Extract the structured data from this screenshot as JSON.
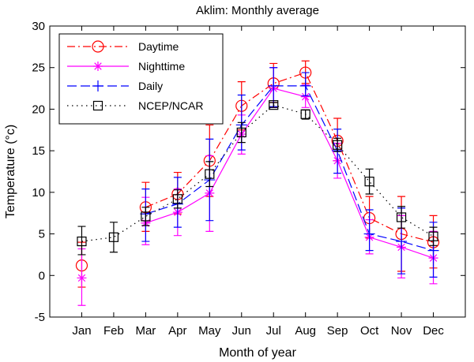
{
  "chart_data": {
    "type": "line",
    "title": "Aklim: Monthly average",
    "xlabel": "Month of year",
    "ylabel": "Temperature (°c)",
    "ylim": [
      -5,
      30
    ],
    "yticks": [
      -5,
      0,
      5,
      10,
      15,
      20,
      25,
      30
    ],
    "categories": [
      "Jan",
      "Feb",
      "Mar",
      "Apr",
      "May",
      "Jun",
      "Jul",
      "Aug",
      "Sep",
      "Oct",
      "Nov",
      "Dec"
    ],
    "legend_position": "top-left",
    "series": [
      {
        "name": "Daytime",
        "color": "#ff0000",
        "line_style": "dash-dot",
        "marker": "circle",
        "values": [
          1.2,
          null,
          8.2,
          9.8,
          13.8,
          20.4,
          23.1,
          24.4,
          16.2,
          6.9,
          5.0,
          4.0
        ],
        "err_low": [
          -1.4,
          null,
          5.3,
          7.4,
          9.5,
          17.5,
          20.8,
          23.1,
          13.8,
          4.5,
          0.5,
          0.9
        ],
        "err_high": [
          4.0,
          null,
          11.2,
          12.4,
          18.1,
          23.3,
          25.5,
          25.8,
          18.9,
          9.5,
          9.5,
          7.2
        ]
      },
      {
        "name": "Nighttime",
        "color": "#ff00ff",
        "line_style": "solid",
        "marker": "star",
        "values": [
          -0.3,
          null,
          6.3,
          7.6,
          9.9,
          17.0,
          22.5,
          21.5,
          13.8,
          4.6,
          3.4,
          2.1
        ],
        "err_low": [
          -3.6,
          null,
          3.7,
          4.8,
          5.3,
          14.6,
          20.2,
          20.2,
          11.7,
          2.6,
          -0.3,
          -1.0
        ],
        "err_high": [
          3.2,
          null,
          9.4,
          10.4,
          14.4,
          19.3,
          25.0,
          22.9,
          15.9,
          6.7,
          7.2,
          5.3
        ]
      },
      {
        "name": "Daily",
        "color": "#0000ff",
        "line_style": "dashed",
        "marker": "plus",
        "values": [
          null,
          null,
          7.4,
          8.6,
          11.5,
          18.1,
          22.8,
          22.8,
          15.0,
          5.0,
          4.1,
          3.0
        ],
        "err_low": [
          null,
          null,
          4.1,
          5.8,
          6.6,
          15.1,
          20.3,
          21.6,
          12.3,
          3.0,
          0.2,
          -0.2
        ],
        "err_high": [
          null,
          null,
          10.4,
          11.8,
          16.4,
          21.7,
          25.0,
          24.4,
          17.6,
          7.9,
          8.1,
          6.4
        ]
      },
      {
        "name": "NCEP/NCAR",
        "color": "#000000",
        "line_style": "dotted",
        "marker": "square",
        "values": [
          4.1,
          4.6,
          7.1,
          9.2,
          12.2,
          17.2,
          20.5,
          19.4,
          15.7,
          11.3,
          7.0,
          4.7
        ],
        "err_low": [
          2.5,
          2.8,
          6.0,
          8.1,
          10.7,
          16.0,
          20.2,
          18.8,
          14.9,
          9.8,
          5.7,
          3.6
        ],
        "err_high": [
          5.9,
          6.4,
          8.2,
          10.3,
          13.7,
          18.4,
          20.8,
          19.9,
          16.5,
          12.8,
          8.3,
          5.8
        ]
      }
    ]
  }
}
